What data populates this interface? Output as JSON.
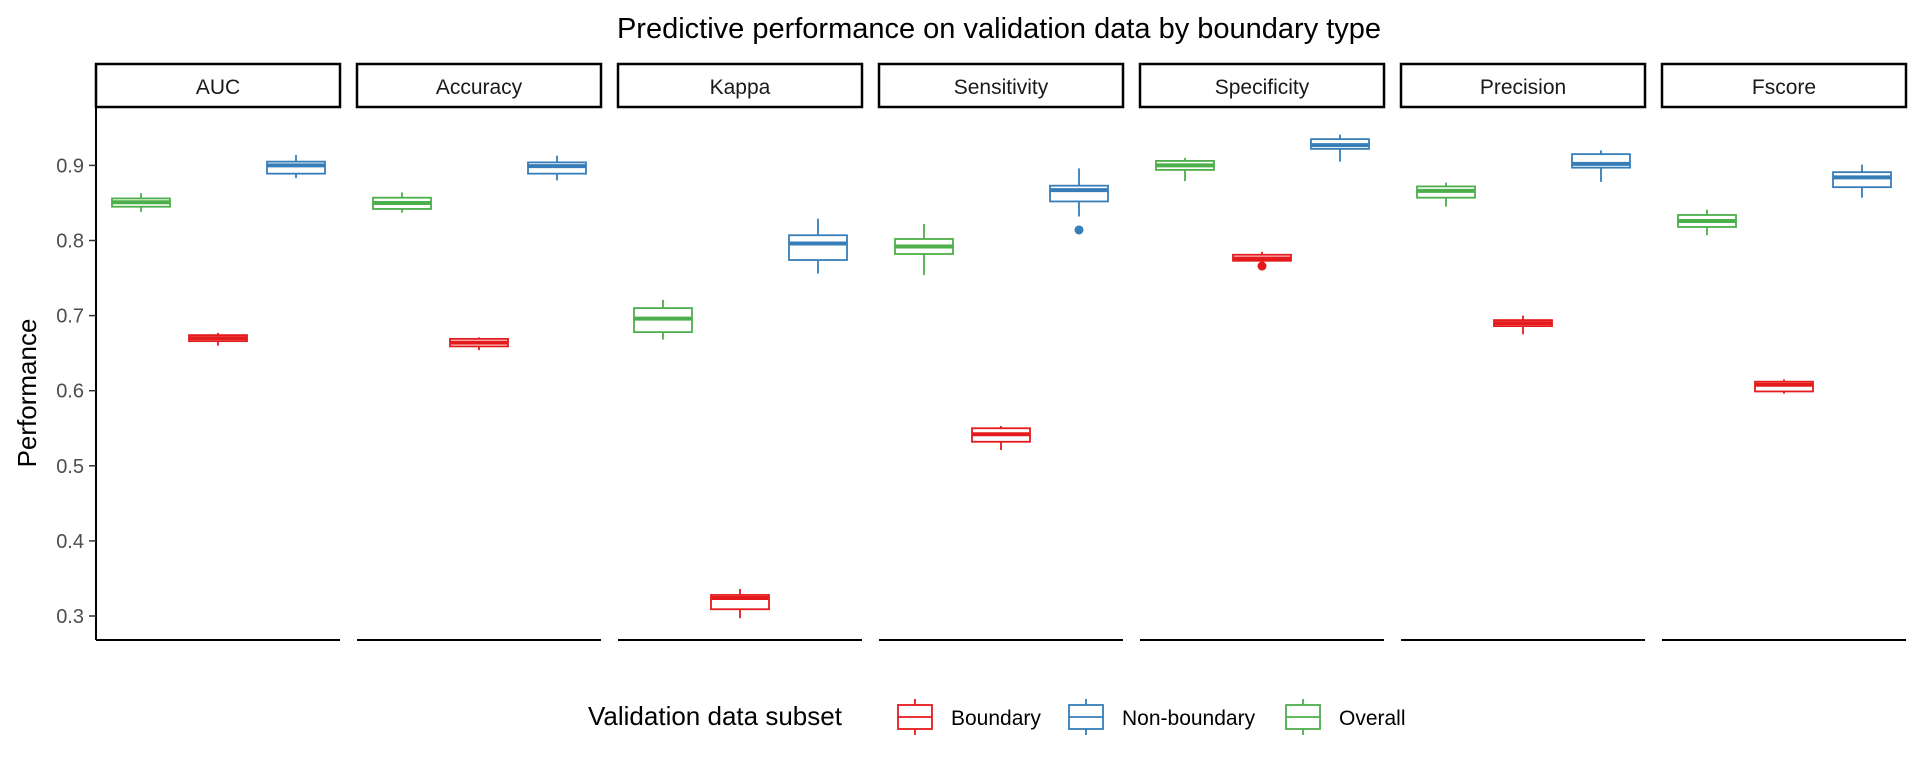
{
  "chart_data": {
    "type": "boxplot",
    "title": "Predictive performance on validation data by boundary type",
    "ylabel": "Performance",
    "ylim": [
      0.27,
      0.97
    ],
    "yticks": [
      0.3,
      0.4,
      0.5,
      0.6,
      0.7,
      0.8,
      0.9
    ],
    "ytick_labels": [
      "0.3",
      "0.4",
      "0.5",
      "0.6",
      "0.7",
      "0.8",
      "0.9"
    ],
    "grid": false,
    "legend": {
      "title": "Validation data subset",
      "position": "bottom",
      "entries": [
        "Boundary",
        "Non-boundary",
        "Overall"
      ]
    },
    "colors": {
      "Overall": "#4daf4a",
      "Boundary": "#e41a1c",
      "Non-boundary": "#377eb8"
    },
    "plot_order": [
      "Overall",
      "Boundary",
      "Non-boundary"
    ],
    "facets": [
      {
        "name": "AUC",
        "boxes": {
          "Overall": {
            "min": 0.838,
            "q1": 0.845,
            "median": 0.851,
            "q3": 0.856,
            "max": 0.863,
            "outliers": []
          },
          "Boundary": {
            "min": 0.66,
            "q1": 0.666,
            "median": 0.67,
            "q3": 0.674,
            "max": 0.677,
            "outliers": []
          },
          "Non-boundary": {
            "min": 0.883,
            "q1": 0.889,
            "median": 0.9,
            "q3": 0.905,
            "max": 0.914,
            "outliers": []
          }
        }
      },
      {
        "name": "Accuracy",
        "boxes": {
          "Overall": {
            "min": 0.837,
            "q1": 0.842,
            "median": 0.85,
            "q3": 0.857,
            "max": 0.864,
            "outliers": []
          },
          "Boundary": {
            "min": 0.654,
            "q1": 0.659,
            "median": 0.664,
            "q3": 0.669,
            "max": 0.671,
            "outliers": []
          },
          "Non-boundary": {
            "min": 0.88,
            "q1": 0.889,
            "median": 0.899,
            "q3": 0.904,
            "max": 0.913,
            "outliers": []
          }
        }
      },
      {
        "name": "Kappa",
        "boxes": {
          "Overall": {
            "min": 0.668,
            "q1": 0.678,
            "median": 0.696,
            "q3": 0.71,
            "max": 0.721,
            "outliers": []
          },
          "Boundary": {
            "min": 0.297,
            "q1": 0.309,
            "median": 0.324,
            "q3": 0.328,
            "max": 0.336,
            "outliers": []
          },
          "Non-boundary": {
            "min": 0.756,
            "q1": 0.774,
            "median": 0.796,
            "q3": 0.807,
            "max": 0.829,
            "outliers": []
          }
        }
      },
      {
        "name": "Sensitivity",
        "boxes": {
          "Overall": {
            "min": 0.754,
            "q1": 0.782,
            "median": 0.792,
            "q3": 0.802,
            "max": 0.822,
            "outliers": []
          },
          "Boundary": {
            "min": 0.521,
            "q1": 0.532,
            "median": 0.542,
            "q3": 0.55,
            "max": 0.553,
            "outliers": []
          },
          "Non-boundary": {
            "min": 0.832,
            "q1": 0.852,
            "median": 0.867,
            "q3": 0.873,
            "max": 0.896,
            "outliers": [
              0.814
            ]
          }
        }
      },
      {
        "name": "Specificity",
        "boxes": {
          "Overall": {
            "min": 0.879,
            "q1": 0.894,
            "median": 0.9,
            "q3": 0.906,
            "max": 0.91,
            "outliers": []
          },
          "Boundary": {
            "min": 0.77,
            "q1": 0.773,
            "median": 0.776,
            "q3": 0.781,
            "max": 0.785,
            "outliers": [
              0.766
            ]
          },
          "Non-boundary": {
            "min": 0.905,
            "q1": 0.922,
            "median": 0.927,
            "q3": 0.935,
            "max": 0.941,
            "outliers": []
          }
        }
      },
      {
        "name": "Precision",
        "boxes": {
          "Overall": {
            "min": 0.845,
            "q1": 0.857,
            "median": 0.866,
            "q3": 0.872,
            "max": 0.877,
            "outliers": []
          },
          "Boundary": {
            "min": 0.675,
            "q1": 0.686,
            "median": 0.69,
            "q3": 0.694,
            "max": 0.7,
            "outliers": []
          },
          "Non-boundary": {
            "min": 0.878,
            "q1": 0.897,
            "median": 0.902,
            "q3": 0.915,
            "max": 0.92,
            "outliers": []
          }
        }
      },
      {
        "name": "Fscore",
        "boxes": {
          "Overall": {
            "min": 0.807,
            "q1": 0.818,
            "median": 0.826,
            "q3": 0.834,
            "max": 0.841,
            "outliers": []
          },
          "Boundary": {
            "min": 0.596,
            "q1": 0.599,
            "median": 0.608,
            "q3": 0.612,
            "max": 0.615,
            "outliers": []
          },
          "Non-boundary": {
            "min": 0.857,
            "q1": 0.871,
            "median": 0.884,
            "q3": 0.891,
            "max": 0.901,
            "outliers": []
          }
        }
      }
    ]
  }
}
